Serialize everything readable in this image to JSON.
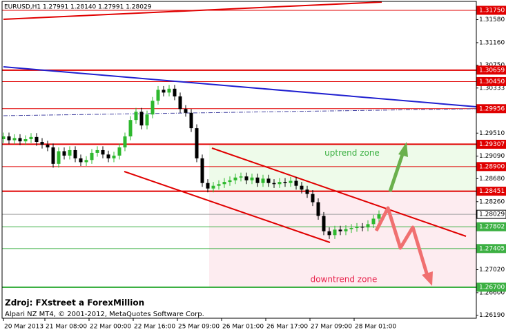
{
  "chart_data": {
    "type": "candlestick",
    "title": "EURUSD,H1  1.27991 1.28140 1.27991 1.28029",
    "source": "Zdroj: FXstreet a ForexMillion",
    "copyright": "Alpari NZ MT4, © 2001-2012, MetaQuotes Software Corp.",
    "x": [
      0,
      2,
      4,
      6,
      8,
      10,
      12,
      14,
      16,
      18,
      20,
      22,
      24,
      26,
      28,
      30,
      32,
      34,
      36,
      38,
      40,
      42,
      44,
      46,
      48,
      50,
      52,
      54,
      56,
      58,
      60,
      62,
      64,
      66,
      68,
      70,
      72,
      74,
      76,
      78,
      80,
      82,
      84,
      86,
      88,
      90,
      92,
      94,
      96,
      98,
      100,
      102,
      104,
      106,
      108,
      110,
      112,
      114,
      116,
      118,
      120,
      122,
      124,
      126,
      128,
      130,
      132,
      134,
      136
    ],
    "open": [
      1.294,
      1.2945,
      1.2938,
      1.2942,
      1.2936,
      1.294,
      1.2944,
      1.2935,
      1.293,
      1.2925,
      1.2895,
      1.2918,
      1.291,
      1.292,
      1.2905,
      1.2898,
      1.2902,
      1.2915,
      1.292,
      1.2912,
      1.2905,
      1.291,
      1.2925,
      1.2945,
      1.2975,
      1.299,
      1.2965,
      1.2985,
      1.301,
      1.303,
      1.3025,
      1.3032,
      1.3018,
      1.2995,
      1.2988,
      1.296,
      1.2905,
      1.286,
      1.285,
      1.2855,
      1.2858,
      1.2862,
      1.2865,
      1.287,
      1.2872,
      1.2865,
      1.287,
      1.286,
      1.2868,
      1.286,
      1.2858,
      1.2862,
      1.286,
      1.2864,
      1.2855,
      1.2848,
      1.284,
      1.2825,
      1.28,
      1.2772,
      1.2765,
      1.2775,
      1.2772,
      1.2776,
      1.2778,
      1.278,
      1.2779,
      1.2785,
      1.2795
    ],
    "high": [
      1.2952,
      1.2952,
      1.2949,
      1.2949,
      1.2947,
      1.2951,
      1.2951,
      1.2942,
      1.2937,
      1.2932,
      1.2925,
      1.2925,
      1.2927,
      1.2927,
      1.2912,
      1.2909,
      1.2922,
      1.2927,
      1.2927,
      1.2919,
      1.2917,
      1.2932,
      1.2952,
      1.2982,
      1.2997,
      1.2997,
      1.2992,
      1.3017,
      1.3037,
      1.3037,
      1.3039,
      1.3039,
      1.3025,
      1.3002,
      1.2995,
      1.2967,
      1.2912,
      1.2867,
      1.2862,
      1.2865,
      1.2869,
      1.2872,
      1.2877,
      1.2879,
      1.2879,
      1.2877,
      1.2877,
      1.2875,
      1.2875,
      1.2867,
      1.2869,
      1.2869,
      1.2871,
      1.2871,
      1.2862,
      1.2855,
      1.2847,
      1.2832,
      1.2807,
      1.2779,
      1.2782,
      1.2782,
      1.2783,
      1.2785,
      1.2787,
      1.2787,
      1.2792,
      1.2802,
      1.281
    ],
    "low": [
      1.2933,
      1.2931,
      1.2931,
      1.2929,
      1.2929,
      1.2933,
      1.2928,
      1.2923,
      1.2918,
      1.2888,
      1.2888,
      1.2903,
      1.2903,
      1.2898,
      1.2891,
      1.2891,
      1.2895,
      1.2908,
      1.2905,
      1.2898,
      1.2898,
      1.2903,
      1.2918,
      1.2938,
      1.2968,
      1.2958,
      1.2958,
      1.2978,
      1.3003,
      1.3018,
      1.3018,
      1.3011,
      1.2988,
      1.2981,
      1.2953,
      1.2898,
      1.2853,
      1.2843,
      1.2843,
      1.2848,
      1.2851,
      1.2855,
      1.2858,
      1.2863,
      1.2858,
      1.2858,
      1.2853,
      1.2853,
      1.2853,
      1.2851,
      1.2851,
      1.2853,
      1.2853,
      1.2848,
      1.2841,
      1.2833,
      1.2818,
      1.2793,
      1.2765,
      1.2758,
      1.2758,
      1.2765,
      1.2765,
      1.2769,
      1.2771,
      1.2772,
      1.2772,
      1.2778,
      1.2788
    ],
    "close": [
      1.2945,
      1.2938,
      1.2942,
      1.2936,
      1.294,
      1.2944,
      1.2935,
      1.293,
      1.2925,
      1.2895,
      1.2918,
      1.291,
      1.292,
      1.2905,
      1.2898,
      1.2902,
      1.2915,
      1.292,
      1.2912,
      1.2905,
      1.291,
      1.2925,
      1.2945,
      1.2975,
      1.299,
      1.2965,
      1.2985,
      1.301,
      1.303,
      1.3025,
      1.3032,
      1.3018,
      1.2995,
      1.2988,
      1.296,
      1.2905,
      1.286,
      1.285,
      1.2855,
      1.2858,
      1.2862,
      1.2865,
      1.287,
      1.2872,
      1.2865,
      1.287,
      1.286,
      1.2868,
      1.286,
      1.2858,
      1.2862,
      1.286,
      1.2864,
      1.2855,
      1.2848,
      1.284,
      1.2825,
      1.28,
      1.2772,
      1.2765,
      1.2775,
      1.2772,
      1.2776,
      1.2778,
      1.278,
      1.2779,
      1.2785,
      1.2795,
      1.2803
    ],
    "bull_color": "#2eb82e",
    "bear_color": "#000000",
    "xlim": [
      -0.5,
      171.25
    ],
    "ylim": [
      1.26134,
      1.31913
    ],
    "xticks": [
      {
        "value": 0,
        "label": "20 Mar 2013"
      },
      {
        "value": 15,
        "label": "21 Mar 08:00"
      },
      {
        "value": 31,
        "label": "22 Mar 00:00"
      },
      {
        "value": 47,
        "label": "22 Mar 16:00"
      },
      {
        "value": 63,
        "label": "25 Mar 09:00"
      },
      {
        "value": 79,
        "label": "26 Mar 01:00"
      },
      {
        "value": 95,
        "label": "26 Mar 17:00"
      },
      {
        "value": 111,
        "label": "27 Mar 09:00"
      },
      {
        "value": 127,
        "label": "28 Mar 01:00"
      }
    ],
    "yticks": [
      {
        "value": 1.3158,
        "label": "1.31580"
      },
      {
        "value": 1.3116,
        "label": "1.31160"
      },
      {
        "value": 1.3075,
        "label": "1.30750"
      },
      {
        "value": 1.30333,
        "label": "1.30333"
      },
      {
        "value": 1.2951,
        "label": "1.29510"
      },
      {
        "value": 1.2909,
        "label": "1.29090"
      },
      {
        "value": 1.2868,
        "label": "1.28680"
      },
      {
        "value": 1.2826,
        "label": "1.28260"
      },
      {
        "value": 1.2743,
        "label": "1.27430"
      },
      {
        "value": 1.2702,
        "label": "1.27020"
      },
      {
        "value": 1.266,
        "label": "1.26600"
      },
      {
        "value": 1.2619,
        "label": "1.26190"
      }
    ],
    "zones": [
      {
        "name": "uptrend zone",
        "color": "#eefbea",
        "text_color": "#3cb043",
        "x_start": 74.5,
        "ylim": [
          1.28451,
          1.29307
        ]
      },
      {
        "name": "downtrend zone",
        "color": "#fdecf0",
        "text_color": "#e8204a",
        "x_start": 74.5,
        "ylim": [
          1.267,
          1.28451
        ]
      }
    ],
    "levels": [
      {
        "value": 1.3175,
        "label": "1.31750",
        "color": "#e00000",
        "width": 1
      },
      {
        "value": 1.30659,
        "label": "1.30659",
        "color": "#e00000",
        "width": 2
      },
      {
        "value": 1.3045,
        "label": "1.30450",
        "color": "#e00000",
        "width": 1
      },
      {
        "value": 1.29956,
        "label": "1.29956",
        "color": "#e00000",
        "width": 1
      },
      {
        "value": 1.29307,
        "label": "1.29307",
        "color": "#e00000",
        "width": 2
      },
      {
        "value": 1.289,
        "label": "1.28900",
        "color": "#e00000",
        "width": 1
      },
      {
        "value": 1.28451,
        "label": "1.28451",
        "color": "#e00000",
        "width": 2
      },
      {
        "value": 1.28029,
        "label": "1.28029",
        "color": "#a0a0a0",
        "width": 1
      },
      {
        "value": 1.27802,
        "label": "1.27802",
        "color": "#3cb043",
        "width": 1
      },
      {
        "value": 1.27405,
        "label": "1.27405",
        "color": "#3cb043",
        "width": 1
      },
      {
        "value": 1.267,
        "label": "1.26700",
        "color": "#3cb043",
        "width": 2
      }
    ],
    "trendlines": [
      {
        "x": [
          0,
          137
        ],
        "y": [
          1.31587,
          1.31901
        ],
        "color": "#e00000",
        "dashed": false
      },
      {
        "x": [
          0,
          171.25
        ],
        "y": [
          1.3072,
          1.29991
        ],
        "color": "#2020d0",
        "dashed": false
      },
      {
        "x": [
          0,
          171.25
        ],
        "y": [
          1.29828,
          1.29954
        ],
        "color": "#4040a0",
        "dashed": true
      },
      {
        "x": [
          75.5,
          167.5
        ],
        "y": [
          1.29237,
          1.27629
        ],
        "color": "#e00000",
        "dashed": false
      },
      {
        "x": [
          43.75,
          118.25
        ],
        "y": [
          1.2881,
          1.27516
        ],
        "color": "#e00000",
        "dashed": false
      }
    ]
  }
}
